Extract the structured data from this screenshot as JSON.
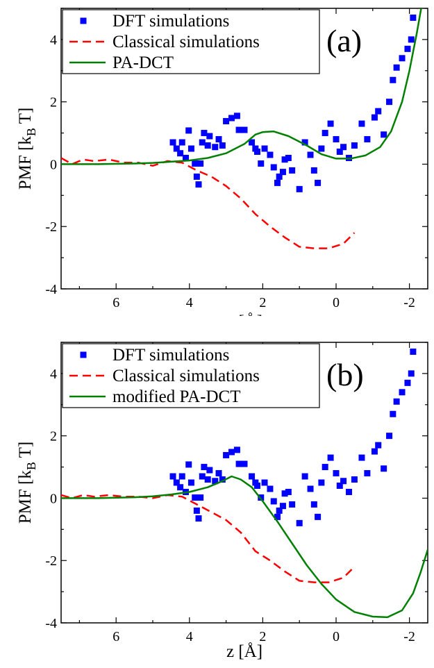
{
  "chart_data": [
    {
      "type": "scatter",
      "panel_label": "(a)",
      "ylabel_main": "PMF [k",
      "ylabel_sub": "B",
      "ylabel_tail": " T]",
      "xlabel": "z [Å]",
      "xlim": [
        7.5,
        -2.5
      ],
      "ylim": [
        -4,
        5
      ],
      "xticks": [
        6,
        4,
        2,
        0,
        -2
      ],
      "yticks": [
        4,
        2,
        0,
        -2,
        -4
      ],
      "x_reversed": true,
      "legend": {
        "position": "top-left"
      },
      "series": [
        {
          "name": "DFT simulations",
          "kind": "markers",
          "color": "#0000ff",
          "points": [
            [
              4.45,
              0.7
            ],
            [
              4.35,
              0.5
            ],
            [
              4.25,
              0.35
            ],
            [
              4.2,
              0.7
            ],
            [
              4.1,
              0.2
            ],
            [
              4.02,
              1.08
            ],
            [
              3.95,
              0.5
            ],
            [
              3.85,
              0.02
            ],
            [
              3.8,
              -0.4
            ],
            [
              3.75,
              -0.65
            ],
            [
              3.7,
              0.02
            ],
            [
              3.65,
              0.7
            ],
            [
              3.6,
              1.0
            ],
            [
              3.5,
              0.6
            ],
            [
              3.45,
              0.9
            ],
            [
              3.3,
              0.55
            ],
            [
              3.2,
              0.8
            ],
            [
              3.1,
              0.6
            ],
            [
              3.0,
              1.38
            ],
            [
              2.85,
              1.48
            ],
            [
              2.7,
              1.55
            ],
            [
              2.65,
              1.1
            ],
            [
              2.5,
              1.1
            ],
            [
              2.3,
              0.7
            ],
            [
              2.2,
              0.5
            ],
            [
              2.15,
              0.4
            ],
            [
              2.05,
              0.02
            ],
            [
              1.95,
              0.5
            ],
            [
              1.8,
              0.3
            ],
            [
              1.7,
              -0.1
            ],
            [
              1.6,
              -0.6
            ],
            [
              1.55,
              -0.4
            ],
            [
              1.45,
              -0.25
            ],
            [
              1.4,
              0.15
            ],
            [
              1.3,
              0.2
            ],
            [
              1.2,
              -0.2
            ],
            [
              1.0,
              -0.8
            ],
            [
              0.85,
              0.7
            ],
            [
              0.7,
              0.3
            ],
            [
              0.6,
              -0.2
            ],
            [
              0.5,
              -0.6
            ],
            [
              0.4,
              0.5
            ],
            [
              0.3,
              1.0
            ],
            [
              0.15,
              1.3
            ],
            [
              0.0,
              0.8
            ],
            [
              -0.1,
              0.4
            ],
            [
              -0.2,
              0.55
            ],
            [
              -0.35,
              0.2
            ],
            [
              -0.5,
              0.6
            ],
            [
              -0.7,
              1.3
            ],
            [
              -0.85,
              0.8
            ],
            [
              -1.05,
              1.5
            ],
            [
              -1.15,
              1.7
            ],
            [
              -1.3,
              0.95
            ],
            [
              -1.45,
              2.0
            ],
            [
              -1.55,
              2.7
            ],
            [
              -1.65,
              3.1
            ],
            [
              -1.8,
              3.4
            ],
            [
              -1.95,
              3.7
            ],
            [
              -2.05,
              4.0
            ],
            [
              -2.1,
              4.7
            ]
          ]
        },
        {
          "name": "Classical simulations",
          "kind": "dashed",
          "color": "#ff0000",
          "points": [
            [
              7.5,
              0.2
            ],
            [
              7.2,
              0.0
            ],
            [
              6.9,
              0.15
            ],
            [
              6.6,
              0.1
            ],
            [
              6.2,
              0.15
            ],
            [
              5.8,
              0.05
            ],
            [
              5.4,
              0.05
            ],
            [
              5.0,
              -0.05
            ],
            [
              4.6,
              0.1
            ],
            [
              4.2,
              0.05
            ],
            [
              3.8,
              -0.2
            ],
            [
              3.4,
              -0.4
            ],
            [
              3.0,
              -0.7
            ],
            [
              2.6,
              -1.1
            ],
            [
              2.2,
              -1.6
            ],
            [
              1.8,
              -2.0
            ],
            [
              1.4,
              -2.35
            ],
            [
              1.0,
              -2.65
            ],
            [
              0.6,
              -2.7
            ],
            [
              0.2,
              -2.7
            ],
            [
              -0.2,
              -2.55
            ],
            [
              -0.5,
              -2.2
            ]
          ]
        },
        {
          "name": "PA-DCT",
          "kind": "solid",
          "color": "#008000",
          "points": [
            [
              7.5,
              0.0
            ],
            [
              6.5,
              0.0
            ],
            [
              5.5,
              0.02
            ],
            [
              5.0,
              0.04
            ],
            [
              4.5,
              0.08
            ],
            [
              4.0,
              0.12
            ],
            [
              3.5,
              0.2
            ],
            [
              3.0,
              0.35
            ],
            [
              2.5,
              0.65
            ],
            [
              2.2,
              0.95
            ],
            [
              2.0,
              1.03
            ],
            [
              1.7,
              1.05
            ],
            [
              1.3,
              0.9
            ],
            [
              0.8,
              0.6
            ],
            [
              0.4,
              0.32
            ],
            [
              0.0,
              0.18
            ],
            [
              -0.4,
              0.18
            ],
            [
              -0.8,
              0.28
            ],
            [
              -1.2,
              0.55
            ],
            [
              -1.5,
              1.05
            ],
            [
              -1.8,
              2.0
            ],
            [
              -2.0,
              3.0
            ],
            [
              -2.2,
              4.2
            ],
            [
              -2.35,
              5.2
            ]
          ]
        }
      ]
    },
    {
      "type": "scatter",
      "panel_label": "(b)",
      "ylabel_main": "PMF [k",
      "ylabel_sub": "B",
      "ylabel_tail": " T]",
      "xlabel": "z [Å]",
      "xlim": [
        7.5,
        -2.5
      ],
      "ylim": [
        -4,
        5
      ],
      "xticks": [
        6,
        4,
        2,
        0,
        -2
      ],
      "yticks": [
        4,
        2,
        0,
        -2,
        -4
      ],
      "x_reversed": true,
      "legend": {
        "position": "top-left"
      },
      "series": [
        {
          "name": "DFT simulations",
          "kind": "markers",
          "color": "#0000ff",
          "points": [
            [
              4.45,
              0.7
            ],
            [
              4.35,
              0.5
            ],
            [
              4.25,
              0.35
            ],
            [
              4.2,
              0.7
            ],
            [
              4.1,
              0.2
            ],
            [
              4.02,
              1.08
            ],
            [
              3.95,
              0.5
            ],
            [
              3.85,
              0.02
            ],
            [
              3.8,
              -0.4
            ],
            [
              3.75,
              -0.65
            ],
            [
              3.7,
              0.02
            ],
            [
              3.65,
              0.7
            ],
            [
              3.6,
              1.0
            ],
            [
              3.5,
              0.6
            ],
            [
              3.45,
              0.9
            ],
            [
              3.3,
              0.55
            ],
            [
              3.2,
              0.8
            ],
            [
              3.1,
              0.6
            ],
            [
              3.0,
              1.38
            ],
            [
              2.85,
              1.48
            ],
            [
              2.7,
              1.55
            ],
            [
              2.65,
              1.1
            ],
            [
              2.5,
              1.1
            ],
            [
              2.3,
              0.7
            ],
            [
              2.2,
              0.5
            ],
            [
              2.15,
              0.4
            ],
            [
              2.05,
              0.02
            ],
            [
              1.95,
              0.5
            ],
            [
              1.8,
              0.3
            ],
            [
              1.7,
              -0.1
            ],
            [
              1.6,
              -0.6
            ],
            [
              1.55,
              -0.4
            ],
            [
              1.45,
              -0.25
            ],
            [
              1.4,
              0.15
            ],
            [
              1.3,
              0.2
            ],
            [
              1.2,
              -0.2
            ],
            [
              1.0,
              -0.8
            ],
            [
              0.85,
              0.7
            ],
            [
              0.7,
              0.3
            ],
            [
              0.6,
              -0.2
            ],
            [
              0.5,
              -0.6
            ],
            [
              0.4,
              0.5
            ],
            [
              0.3,
              1.0
            ],
            [
              0.15,
              1.3
            ],
            [
              0.0,
              0.8
            ],
            [
              -0.1,
              0.4
            ],
            [
              -0.2,
              0.55
            ],
            [
              -0.35,
              0.2
            ],
            [
              -0.5,
              0.6
            ],
            [
              -0.7,
              1.3
            ],
            [
              -0.85,
              0.8
            ],
            [
              -1.05,
              1.5
            ],
            [
              -1.15,
              1.7
            ],
            [
              -1.3,
              0.95
            ],
            [
              -1.45,
              2.0
            ],
            [
              -1.55,
              2.7
            ],
            [
              -1.65,
              3.1
            ],
            [
              -1.8,
              3.4
            ],
            [
              -1.95,
              3.7
            ],
            [
              -2.05,
              4.0
            ],
            [
              -2.1,
              4.7
            ]
          ]
        },
        {
          "name": "Classical simulations",
          "kind": "dashed",
          "color": "#ff0000",
          "points": [
            [
              7.5,
              0.1
            ],
            [
              7.2,
              0.0
            ],
            [
              6.9,
              0.1
            ],
            [
              6.6,
              0.05
            ],
            [
              6.2,
              0.1
            ],
            [
              5.8,
              0.05
            ],
            [
              5.4,
              0.05
            ],
            [
              5.0,
              0.0
            ],
            [
              4.6,
              0.1
            ],
            [
              4.2,
              0.05
            ],
            [
              3.8,
              -0.2
            ],
            [
              3.4,
              -0.45
            ],
            [
              3.0,
              -0.7
            ],
            [
              2.6,
              -1.1
            ],
            [
              2.2,
              -1.7
            ],
            [
              1.8,
              -2.0
            ],
            [
              1.4,
              -2.35
            ],
            [
              1.0,
              -2.65
            ],
            [
              0.6,
              -2.7
            ],
            [
              0.2,
              -2.7
            ],
            [
              -0.2,
              -2.55
            ],
            [
              -0.5,
              -2.2
            ]
          ]
        },
        {
          "name": "modified PA-DCT",
          "kind": "solid",
          "color": "#008000",
          "points": [
            [
              7.5,
              0.0
            ],
            [
              6.5,
              0.0
            ],
            [
              5.5,
              0.03
            ],
            [
              5.0,
              0.06
            ],
            [
              4.5,
              0.12
            ],
            [
              4.0,
              0.2
            ],
            [
              3.5,
              0.35
            ],
            [
              3.1,
              0.55
            ],
            [
              2.85,
              0.7
            ],
            [
              2.6,
              0.6
            ],
            [
              2.3,
              0.35
            ],
            [
              2.0,
              -0.1
            ],
            [
              1.6,
              -0.75
            ],
            [
              1.2,
              -1.45
            ],
            [
              0.8,
              -2.15
            ],
            [
              0.4,
              -2.75
            ],
            [
              0.0,
              -3.25
            ],
            [
              -0.5,
              -3.65
            ],
            [
              -1.0,
              -3.8
            ],
            [
              -1.4,
              -3.82
            ],
            [
              -1.8,
              -3.6
            ],
            [
              -2.1,
              -3.05
            ],
            [
              -2.3,
              -2.4
            ],
            [
              -2.5,
              -1.65
            ]
          ]
        }
      ]
    }
  ]
}
